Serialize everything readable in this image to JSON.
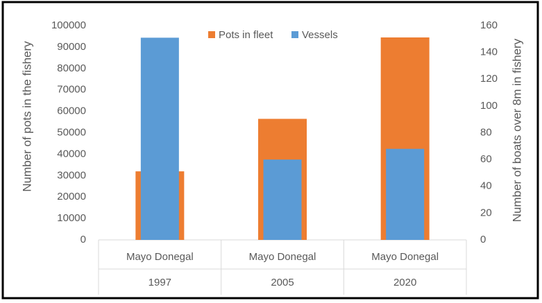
{
  "chart_data": {
    "type": "bar",
    "categories": [
      [
        "Mayo Donegal",
        "1997"
      ],
      [
        "Mayo Donegal",
        "2005"
      ],
      [
        "Mayo Donegal",
        "2020"
      ]
    ],
    "series": [
      {
        "name": "Pots in fleet",
        "color": "#ed7d31",
        "values": [
          32000,
          56500,
          94500
        ]
      },
      {
        "name": "Vessels",
        "color": "#5b9bd5",
        "axis": "y2",
        "values": [
          151,
          60,
          68
        ]
      }
    ],
    "ylabel": "Number of pots in the fishery",
    "y2label": "Number of boats over 8m in fishery",
    "ylim": [
      0,
      100000
    ],
    "yticks": [
      0,
      10000,
      20000,
      30000,
      40000,
      50000,
      60000,
      70000,
      80000,
      90000,
      100000
    ],
    "y2lim": [
      0,
      160
    ],
    "y2ticks": [
      0,
      20,
      40,
      60,
      80,
      100,
      120,
      140,
      160
    ],
    "legend": "top",
    "grid": false
  }
}
